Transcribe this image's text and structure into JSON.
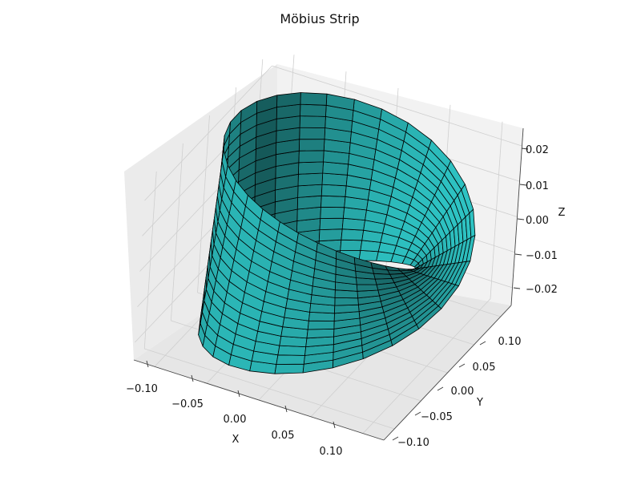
{
  "chart_data": {
    "type": "surface",
    "title": "Möbius Strip",
    "xlabel": "X",
    "ylabel": "Y",
    "zlabel": "Z",
    "x_ticks": [
      "−0.10",
      "−0.05",
      "0.00",
      "0.05",
      "0.10"
    ],
    "y_ticks": [
      "−0.10",
      "−0.05",
      "0.00",
      "0.05",
      "0.10"
    ],
    "z_ticks": [
      "−0.02",
      "−0.01",
      "0.00",
      "0.01",
      "0.02"
    ],
    "xlim": [
      -0.12,
      0.12
    ],
    "ylim": [
      -0.12,
      0.12
    ],
    "zlim": [
      -0.025,
      0.025
    ],
    "grid": true,
    "surface_color": "#2ec4c4",
    "edge_color": "#000000",
    "shape": "mobius",
    "radius": 0.1,
    "half_width": 0.025,
    "u_steps": 30,
    "v_steps": 15
  }
}
